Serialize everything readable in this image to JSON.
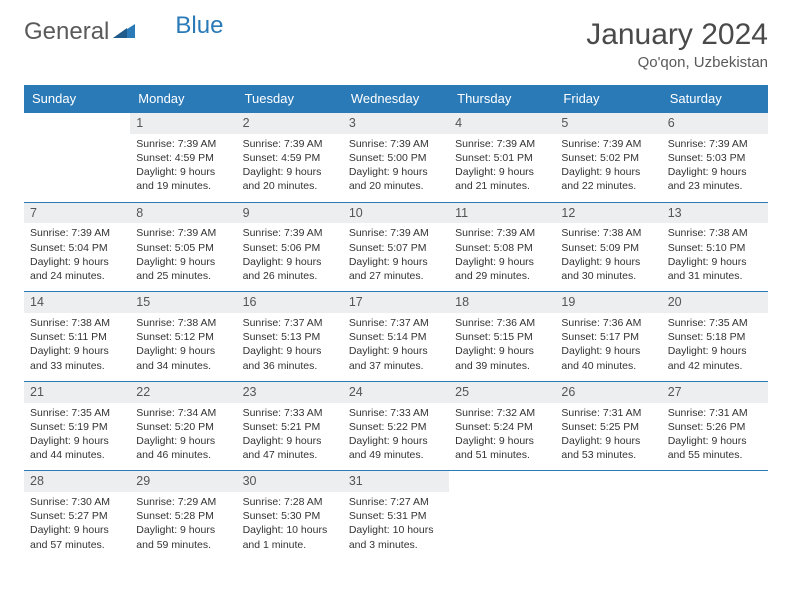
{
  "brand": {
    "part1": "General",
    "part2": "Blue"
  },
  "title": "January 2024",
  "location": "Qo'qon, Uzbekistan",
  "colors": {
    "header_bg": "#2a7ab8",
    "header_text": "#ffffff",
    "daynum_bg": "#eceeef",
    "border": "#2a7ab8",
    "text": "#333333"
  },
  "weekdays": [
    "Sunday",
    "Monday",
    "Tuesday",
    "Wednesday",
    "Thursday",
    "Friday",
    "Saturday"
  ],
  "start_offset": 1,
  "days": [
    {
      "n": "1",
      "sr": "7:39 AM",
      "ss": "4:59 PM",
      "dl": "9 hours and 19 minutes."
    },
    {
      "n": "2",
      "sr": "7:39 AM",
      "ss": "4:59 PM",
      "dl": "9 hours and 20 minutes."
    },
    {
      "n": "3",
      "sr": "7:39 AM",
      "ss": "5:00 PM",
      "dl": "9 hours and 20 minutes."
    },
    {
      "n": "4",
      "sr": "7:39 AM",
      "ss": "5:01 PM",
      "dl": "9 hours and 21 minutes."
    },
    {
      "n": "5",
      "sr": "7:39 AM",
      "ss": "5:02 PM",
      "dl": "9 hours and 22 minutes."
    },
    {
      "n": "6",
      "sr": "7:39 AM",
      "ss": "5:03 PM",
      "dl": "9 hours and 23 minutes."
    },
    {
      "n": "7",
      "sr": "7:39 AM",
      "ss": "5:04 PM",
      "dl": "9 hours and 24 minutes."
    },
    {
      "n": "8",
      "sr": "7:39 AM",
      "ss": "5:05 PM",
      "dl": "9 hours and 25 minutes."
    },
    {
      "n": "9",
      "sr": "7:39 AM",
      "ss": "5:06 PM",
      "dl": "9 hours and 26 minutes."
    },
    {
      "n": "10",
      "sr": "7:39 AM",
      "ss": "5:07 PM",
      "dl": "9 hours and 27 minutes."
    },
    {
      "n": "11",
      "sr": "7:39 AM",
      "ss": "5:08 PM",
      "dl": "9 hours and 29 minutes."
    },
    {
      "n": "12",
      "sr": "7:38 AM",
      "ss": "5:09 PM",
      "dl": "9 hours and 30 minutes."
    },
    {
      "n": "13",
      "sr": "7:38 AM",
      "ss": "5:10 PM",
      "dl": "9 hours and 31 minutes."
    },
    {
      "n": "14",
      "sr": "7:38 AM",
      "ss": "5:11 PM",
      "dl": "9 hours and 33 minutes."
    },
    {
      "n": "15",
      "sr": "7:38 AM",
      "ss": "5:12 PM",
      "dl": "9 hours and 34 minutes."
    },
    {
      "n": "16",
      "sr": "7:37 AM",
      "ss": "5:13 PM",
      "dl": "9 hours and 36 minutes."
    },
    {
      "n": "17",
      "sr": "7:37 AM",
      "ss": "5:14 PM",
      "dl": "9 hours and 37 minutes."
    },
    {
      "n": "18",
      "sr": "7:36 AM",
      "ss": "5:15 PM",
      "dl": "9 hours and 39 minutes."
    },
    {
      "n": "19",
      "sr": "7:36 AM",
      "ss": "5:17 PM",
      "dl": "9 hours and 40 minutes."
    },
    {
      "n": "20",
      "sr": "7:35 AM",
      "ss": "5:18 PM",
      "dl": "9 hours and 42 minutes."
    },
    {
      "n": "21",
      "sr": "7:35 AM",
      "ss": "5:19 PM",
      "dl": "9 hours and 44 minutes."
    },
    {
      "n": "22",
      "sr": "7:34 AM",
      "ss": "5:20 PM",
      "dl": "9 hours and 46 minutes."
    },
    {
      "n": "23",
      "sr": "7:33 AM",
      "ss": "5:21 PM",
      "dl": "9 hours and 47 minutes."
    },
    {
      "n": "24",
      "sr": "7:33 AM",
      "ss": "5:22 PM",
      "dl": "9 hours and 49 minutes."
    },
    {
      "n": "25",
      "sr": "7:32 AM",
      "ss": "5:24 PM",
      "dl": "9 hours and 51 minutes."
    },
    {
      "n": "26",
      "sr": "7:31 AM",
      "ss": "5:25 PM",
      "dl": "9 hours and 53 minutes."
    },
    {
      "n": "27",
      "sr": "7:31 AM",
      "ss": "5:26 PM",
      "dl": "9 hours and 55 minutes."
    },
    {
      "n": "28",
      "sr": "7:30 AM",
      "ss": "5:27 PM",
      "dl": "9 hours and 57 minutes."
    },
    {
      "n": "29",
      "sr": "7:29 AM",
      "ss": "5:28 PM",
      "dl": "9 hours and 59 minutes."
    },
    {
      "n": "30",
      "sr": "7:28 AM",
      "ss": "5:30 PM",
      "dl": "10 hours and 1 minute."
    },
    {
      "n": "31",
      "sr": "7:27 AM",
      "ss": "5:31 PM",
      "dl": "10 hours and 3 minutes."
    }
  ],
  "labels": {
    "sunrise": "Sunrise:",
    "sunset": "Sunset:",
    "daylight": "Daylight:"
  }
}
